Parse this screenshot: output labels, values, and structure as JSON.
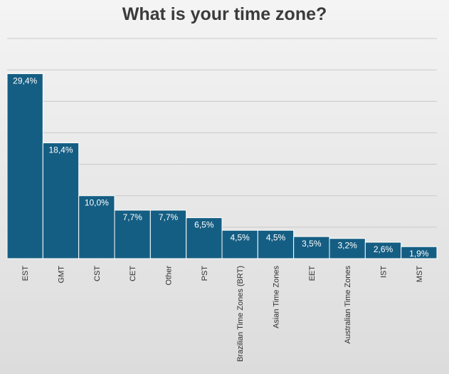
{
  "chart_data": {
    "type": "bar",
    "title": "What is your time zone?",
    "xlabel": "",
    "ylabel": "",
    "categories": [
      "EST",
      "GMT",
      "CST",
      "CET",
      "Other",
      "PST",
      "Brazilian Time Zones (BRT)",
      "Asian Time Zones",
      "EET",
      "Australian Time Zones",
      "IST",
      "MST"
    ],
    "values": [
      29.4,
      18.4,
      10.0,
      7.7,
      7.7,
      6.5,
      4.5,
      4.5,
      3.5,
      3.2,
      2.6,
      1.9
    ],
    "data_labels": [
      "29,4%",
      "18,4%",
      "10,0%",
      "7,7%",
      "7,7%",
      "6,5%",
      "4,5%",
      "4,5%",
      "3,5%",
      "3,2%",
      "2,6%",
      "1,9%"
    ],
    "ylim": [
      0,
      35
    ],
    "grid": true,
    "legend": "none",
    "colors": {
      "bar": "#155e83",
      "background": "#e8e8e8",
      "title": "#3b3b3b"
    }
  }
}
